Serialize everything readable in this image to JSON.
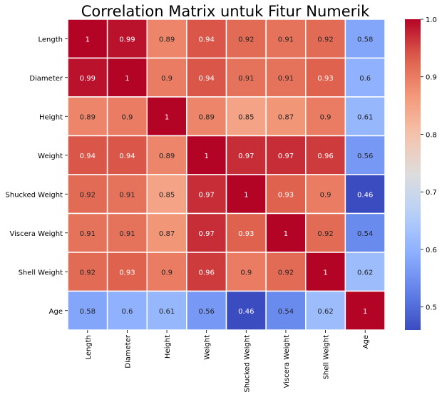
{
  "chart_data": {
    "type": "heatmap",
    "title": "Correlation Matrix untuk Fitur Numerik",
    "x_labels": [
      "Length",
      "Diameter",
      "Height",
      "Weight",
      "Shucked Weight",
      "Viscera Weight",
      "Shell Weight",
      "Age"
    ],
    "y_labels": [
      "Length",
      "Diameter",
      "Height",
      "Weight",
      "Shucked Weight",
      "Viscera Weight",
      "Shell Weight",
      "Age"
    ],
    "values": [
      [
        1,
        0.99,
        0.89,
        0.94,
        0.92,
        0.91,
        0.92,
        0.58
      ],
      [
        0.99,
        1,
        0.9,
        0.94,
        0.91,
        0.91,
        0.93,
        0.6
      ],
      [
        0.89,
        0.9,
        1,
        0.89,
        0.85,
        0.87,
        0.9,
        0.61
      ],
      [
        0.94,
        0.94,
        0.89,
        1,
        0.97,
        0.97,
        0.96,
        0.56
      ],
      [
        0.92,
        0.91,
        0.85,
        0.97,
        1,
        0.93,
        0.9,
        0.46
      ],
      [
        0.91,
        0.91,
        0.87,
        0.97,
        0.93,
        1,
        0.92,
        0.54
      ],
      [
        0.92,
        0.93,
        0.9,
        0.96,
        0.9,
        0.92,
        1,
        0.62
      ],
      [
        0.58,
        0.6,
        0.61,
        0.56,
        0.46,
        0.54,
        0.62,
        1
      ]
    ],
    "colormap": "coolwarm",
    "vmin": 0.46,
    "vmax": 1.0,
    "colorbar_ticks": [
      "0.5",
      "0.6",
      "0.7",
      "0.8",
      "0.9",
      "1.0"
    ],
    "annotations": true,
    "cell_border_color": "#ffffff"
  }
}
